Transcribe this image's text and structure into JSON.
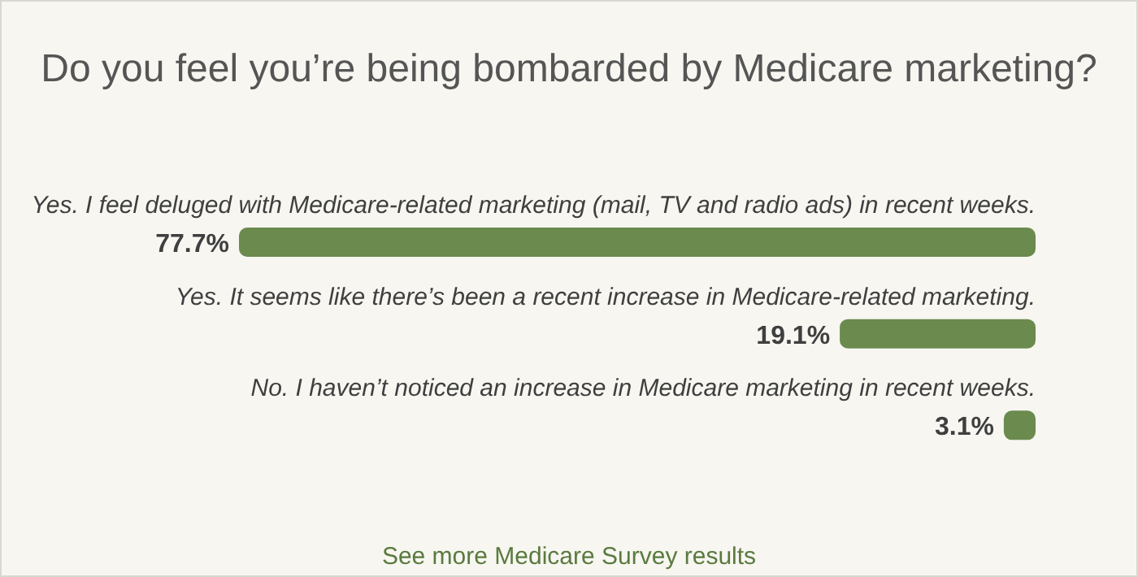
{
  "chart_data": {
    "type": "bar",
    "orientation": "horizontal",
    "title": "Do you feel you’re being bombarded by Medicare marketing?",
    "categories": [
      "Yes. I feel deluged with Medicare-related marketing (mail, TV and radio ads) in recent weeks.",
      "Yes. It seems like there’s been a recent increase in Medicare-related marketing.",
      "No. I haven’t noticed an increase in Medicare marketing in recent weeks."
    ],
    "values": [
      77.7,
      19.1,
      3.1
    ],
    "value_labels": [
      "77.7%",
      "19.1%",
      "3.1%"
    ],
    "color": "#6b8a4e",
    "annotations": [
      "See more Medicare Survey results"
    ]
  }
}
